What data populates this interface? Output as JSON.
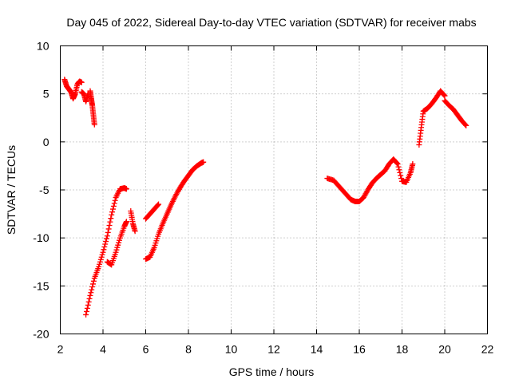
{
  "chart_data": {
    "type": "scatter",
    "title": "Day 045 of 2022, Sidereal Day-to-day VTEC variation (SDTVAR) for receiver mabs",
    "xlabel": "GPS time / hours",
    "ylabel": "SDTVAR / TECUs",
    "xlim": [
      2,
      22
    ],
    "ylim": [
      -20,
      10
    ],
    "xticks": [
      2,
      4,
      6,
      8,
      10,
      12,
      14,
      16,
      18,
      20,
      22
    ],
    "yticks": [
      -20,
      -15,
      -10,
      -5,
      0,
      5,
      10
    ],
    "grid": true,
    "marker": "+",
    "color": "#ff0000",
    "segments": [
      {
        "name": "s1",
        "x": [
          2.2,
          2.3,
          2.4,
          2.5,
          2.6,
          2.7,
          2.8,
          2.9,
          3.0
        ],
        "y": [
          6.5,
          5.8,
          5.5,
          5.2,
          4.5,
          5.0,
          6.0,
          6.3,
          6.2
        ]
      },
      {
        "name": "s2",
        "x": [
          3.0,
          3.1,
          3.2,
          3.3
        ],
        "y": [
          5.2,
          5.0,
          4.2,
          5.0
        ]
      },
      {
        "name": "s3",
        "x": [
          3.4,
          3.45,
          3.5,
          3.55,
          3.6
        ],
        "y": [
          5.3,
          4.5,
          3.8,
          2.8,
          1.8
        ]
      },
      {
        "name": "s4",
        "x": [
          3.2,
          3.4,
          3.6,
          3.8,
          4.0,
          4.2,
          4.4,
          4.6,
          4.8,
          5.0,
          5.1
        ],
        "y": [
          -18.0,
          -16.0,
          -14.2,
          -13.0,
          -11.5,
          -9.8,
          -7.6,
          -5.8,
          -4.9,
          -4.8,
          -4.9
        ]
      },
      {
        "name": "s5",
        "x": [
          4.2,
          4.4,
          4.6,
          4.8,
          5.0,
          5.1
        ],
        "y": [
          -12.5,
          -12.8,
          -11.5,
          -10.0,
          -8.8,
          -8.3
        ]
      },
      {
        "name": "s6",
        "x": [
          5.3,
          5.4,
          5.5
        ],
        "y": [
          -7.2,
          -8.5,
          -9.3
        ]
      },
      {
        "name": "s7",
        "x": [
          6.0,
          6.2,
          6.4,
          6.6
        ],
        "y": [
          -8.0,
          -7.5,
          -7.0,
          -6.5
        ]
      },
      {
        "name": "s8",
        "x": [
          6.0,
          6.2,
          6.4,
          6.6,
          6.8,
          7.0,
          7.2,
          7.4,
          7.6,
          7.8,
          8.0,
          8.2,
          8.4,
          8.6,
          8.7
        ],
        "y": [
          -12.2,
          -12.0,
          -11.0,
          -9.6,
          -8.5,
          -7.5,
          -6.5,
          -5.6,
          -4.8,
          -4.1,
          -3.5,
          -2.9,
          -2.5,
          -2.2,
          -2.1
        ]
      },
      {
        "name": "s9",
        "x": [
          14.5,
          14.8,
          15.0,
          15.2,
          15.4,
          15.6,
          15.8,
          16.0,
          16.2,
          16.4,
          16.6,
          16.8,
          17.0,
          17.2,
          17.4,
          17.6,
          17.8,
          18.0,
          18.2,
          18.4,
          18.5
        ],
        "y": [
          -3.8,
          -4.0,
          -4.5,
          -5.0,
          -5.5,
          -6.0,
          -6.2,
          -6.2,
          -5.8,
          -5.0,
          -4.3,
          -3.8,
          -3.4,
          -3.0,
          -2.3,
          -1.8,
          -2.3,
          -4.1,
          -4.2,
          -3.2,
          -2.3
        ]
      },
      {
        "name": "s10",
        "x": [
          18.8,
          18.9,
          19.0,
          19.2,
          19.4,
          19.6,
          19.8,
          20.0
        ],
        "y": [
          -0.3,
          1.5,
          3.2,
          3.5,
          4.0,
          4.6,
          5.3,
          4.8
        ]
      },
      {
        "name": "s11",
        "x": [
          20.0,
          20.2,
          20.4,
          20.6,
          20.8,
          21.0
        ],
        "y": [
          4.3,
          3.8,
          3.4,
          2.8,
          2.2,
          1.7
        ]
      }
    ]
  }
}
